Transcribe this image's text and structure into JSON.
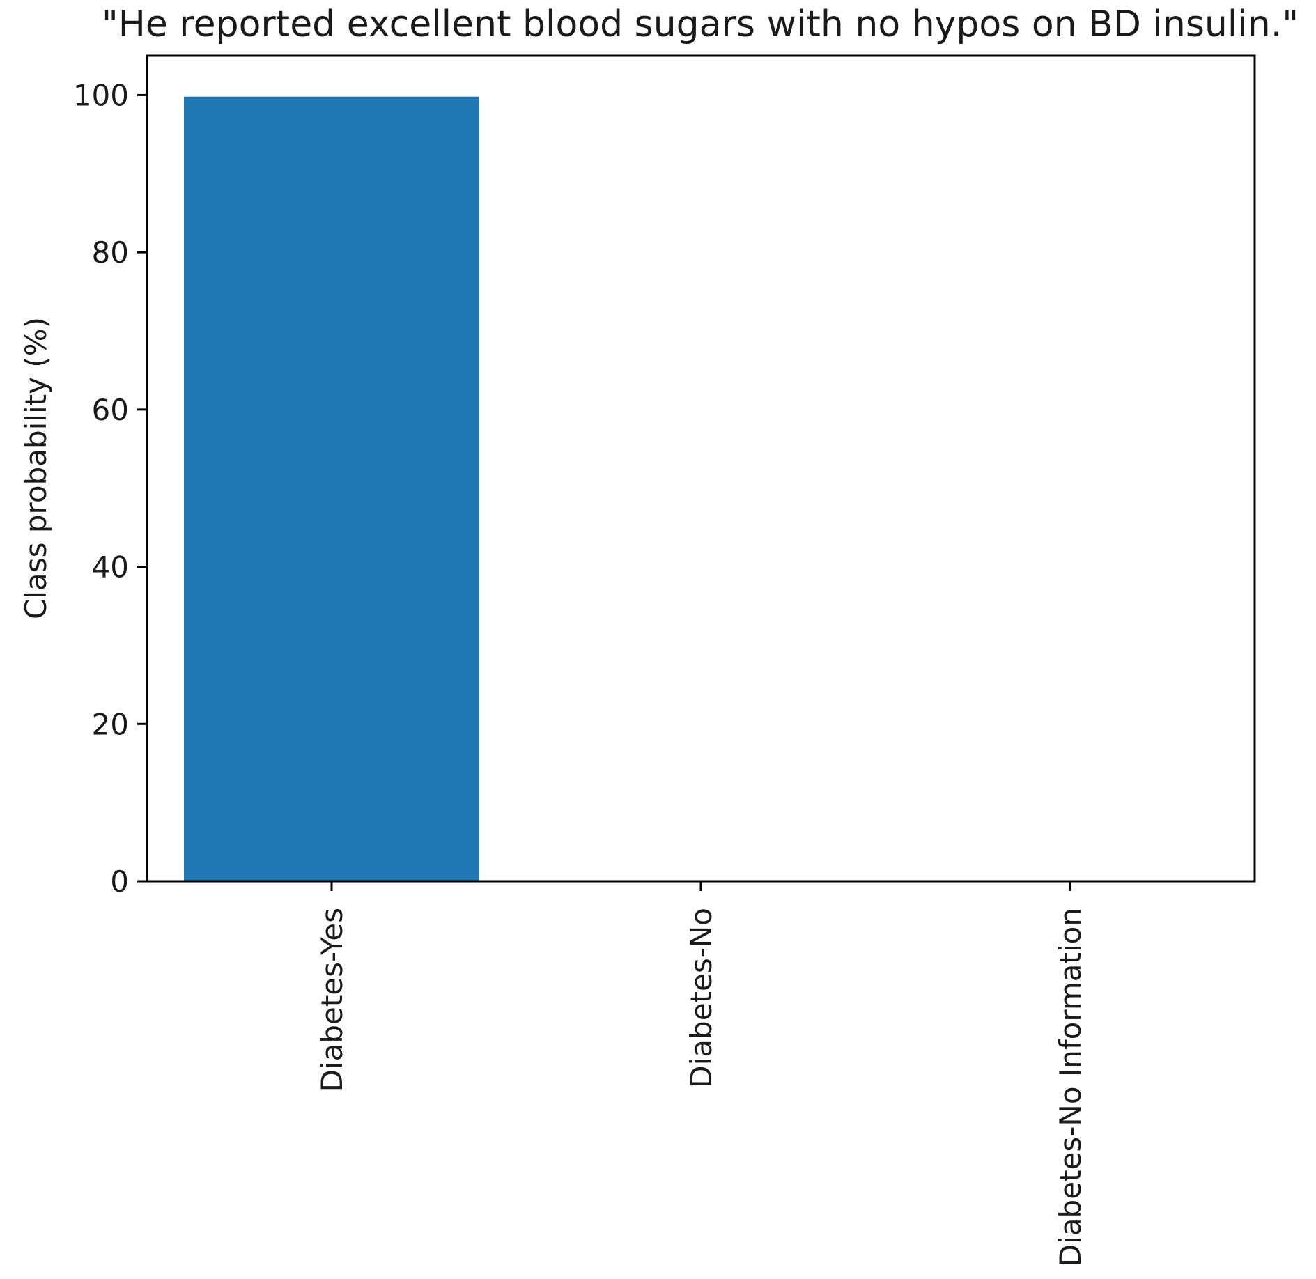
{
  "chart_data": {
    "type": "bar",
    "title": "\"He reported excellent blood sugars with no hypos on BD insulin.\"",
    "xlabel": "",
    "ylabel": "Class probability (%)",
    "categories": [
      "Diabetes-Yes",
      "Diabetes-No",
      "Diabetes-No Information"
    ],
    "values": [
      99.8,
      0.1,
      0.1
    ],
    "ylim": [
      0,
      105
    ],
    "yticks": [
      0,
      20,
      40,
      60,
      80,
      100
    ],
    "bar_color": "#1f77b4",
    "grid": false,
    "legend": "none"
  }
}
